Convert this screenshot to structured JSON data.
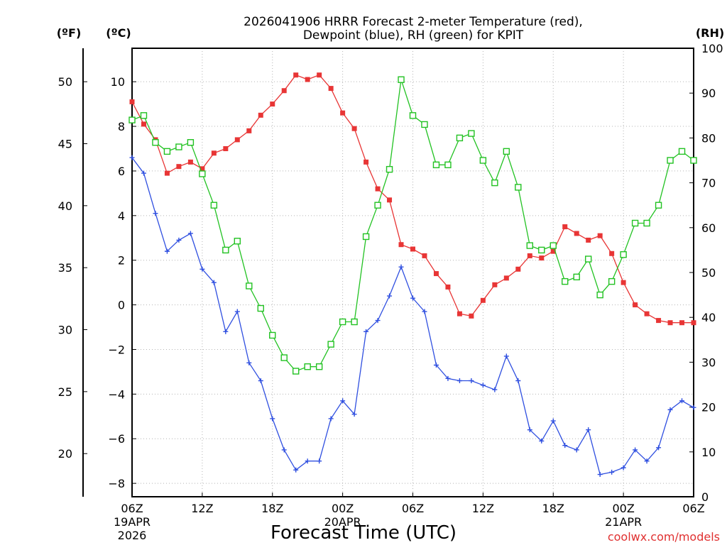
{
  "chart_data": {
    "type": "line",
    "title": [
      "2026041906 HRRR Forecast 2-meter Temperature (red),",
      "Dewpoint (blue), RH (green) for KPIT"
    ],
    "xlabel": "Forecast Time (UTC)",
    "credit": "coolwx.com/models",
    "units": {
      "fahrenheit": "(ºF)",
      "celsius": "(ºC)",
      "rh": "(RH)"
    },
    "x_ticks": [
      {
        "hour": 0,
        "lines": [
          "06Z",
          "19APR",
          "2026"
        ]
      },
      {
        "hour": 6,
        "lines": [
          "12Z"
        ]
      },
      {
        "hour": 12,
        "lines": [
          "18Z"
        ]
      },
      {
        "hour": 18,
        "lines": [
          "00Z",
          "20APR"
        ]
      },
      {
        "hour": 24,
        "lines": [
          "06Z"
        ]
      },
      {
        "hour": 30,
        "lines": [
          "12Z"
        ]
      },
      {
        "hour": 36,
        "lines": [
          "18Z"
        ]
      },
      {
        "hour": 42,
        "lines": [
          "00Z",
          "21APR"
        ]
      },
      {
        "hour": 48,
        "lines": [
          "06Z"
        ]
      }
    ],
    "xlim": [
      0,
      48
    ],
    "celsius_ylim": [
      -8.6,
      11.5
    ],
    "celsius_ticks": [
      "10",
      "8",
      "6",
      "4",
      "2",
      "0",
      "−2",
      "−4",
      "−6",
      "−8"
    ],
    "fahrenheit_ticks": [
      "50",
      "45",
      "40",
      "35",
      "30",
      "25",
      "20"
    ],
    "rh_ylim": [
      0,
      100
    ],
    "rh_ticks": [
      "100",
      "90",
      "80",
      "70",
      "60",
      "50",
      "40",
      "30",
      "20",
      "10",
      "0"
    ],
    "series": [
      {
        "name": "Temperature (C)",
        "color": "#e83535",
        "marker": "filled-square",
        "axis": "celsius",
        "values": [
          9.1,
          8.1,
          7.4,
          5.9,
          6.2,
          6.4,
          6.1,
          6.8,
          7.0,
          7.4,
          7.8,
          8.5,
          9.0,
          9.6,
          10.3,
          10.1,
          10.3,
          9.7,
          8.6,
          7.9,
          6.4,
          5.2,
          4.7,
          2.7,
          2.5,
          2.2,
          1.4,
          0.8,
          -0.4,
          -0.5,
          0.2,
          0.9,
          1.2,
          1.6,
          2.2,
          2.1,
          2.4,
          3.5,
          3.2,
          2.9,
          3.1,
          2.3,
          1.0,
          0.0,
          -0.4,
          -0.7,
          -0.8,
          -0.8,
          -0.8
        ]
      },
      {
        "name": "Dewpoint (C)",
        "color": "#2f4fe0",
        "marker": "plus",
        "axis": "celsius",
        "values": [
          6.6,
          5.9,
          4.1,
          2.4,
          2.9,
          3.2,
          1.6,
          1.0,
          -1.2,
          -0.3,
          -2.6,
          -3.4,
          -5.1,
          -6.5,
          -7.4,
          -7.0,
          -7.0,
          -5.1,
          -4.3,
          -4.9,
          -1.2,
          -0.7,
          0.4,
          1.7,
          0.3,
          -0.3,
          -2.7,
          -3.3,
          -3.4,
          -3.4,
          -3.6,
          -3.8,
          -2.3,
          -3.4,
          -5.6,
          -6.1,
          -5.2,
          -6.3,
          -6.5,
          -5.6,
          -7.6,
          -7.5,
          -7.3,
          -6.5,
          -7.0,
          -6.4,
          -4.7,
          -4.3,
          -4.6
        ]
      },
      {
        "name": "RH (%)",
        "color": "#22c222",
        "marker": "open-square",
        "axis": "rh",
        "values": [
          84,
          85,
          79,
          77,
          78,
          79,
          72,
          65,
          55,
          57,
          47,
          42,
          36,
          31,
          28,
          29,
          29,
          34,
          39,
          39,
          58,
          65,
          73,
          93,
          85,
          83,
          74,
          74,
          80,
          81,
          75,
          70,
          77,
          69,
          56,
          55,
          56,
          48,
          49,
          53,
          45,
          48,
          54,
          61,
          61,
          65,
          75,
          77,
          75
        ]
      }
    ]
  }
}
